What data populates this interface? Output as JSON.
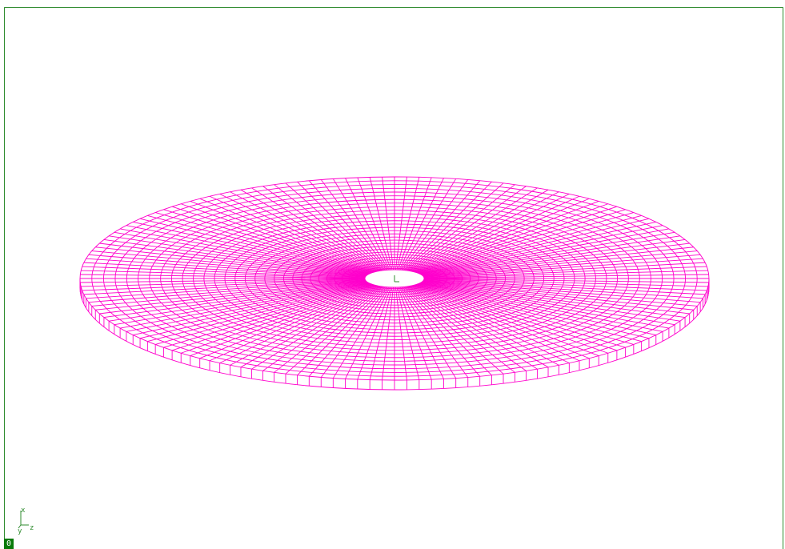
{
  "viewport": {
    "model_color": "#ff00cc",
    "border_color": "#2e8b2e",
    "background_color": "#ffffff"
  },
  "model": {
    "kind": "annular plate mesh",
    "radial_divisions": 30,
    "circumferential_divisions": 160
  },
  "triad": {
    "axis_x": "x",
    "axis_y": "y",
    "axis_z": "z",
    "icon": "coordinate-triad-icon"
  },
  "frame_badge": {
    "label": "0"
  }
}
